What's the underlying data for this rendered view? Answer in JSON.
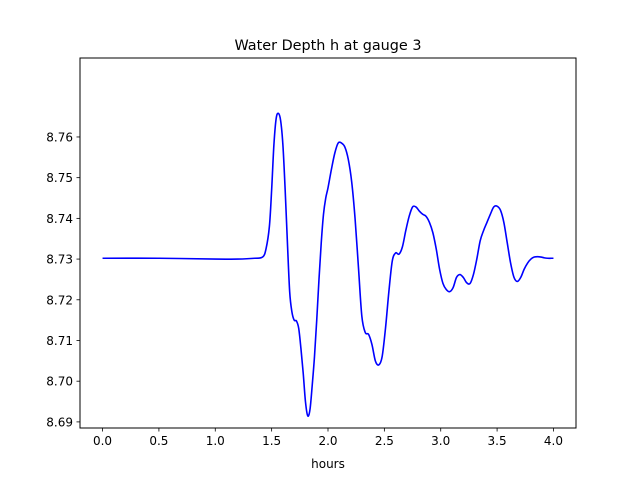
{
  "chart_data": {
    "type": "line",
    "title": "Water Depth h at gauge 3",
    "xlabel": "hours",
    "ylabel": "",
    "xlim": [
      -0.2,
      4.2
    ],
    "ylim": [
      8.6885,
      8.7794
    ],
    "xticks": [
      0.0,
      0.5,
      1.0,
      1.5,
      2.0,
      2.5,
      3.0,
      3.5,
      4.0
    ],
    "xtick_labels": [
      "0.0",
      "0.5",
      "1.0",
      "1.5",
      "2.0",
      "2.5",
      "3.0",
      "3.5",
      "4.0"
    ],
    "yticks": [
      8.69,
      8.7,
      8.71,
      8.72,
      8.73,
      8.74,
      8.75,
      8.76
    ],
    "ytick_labels": [
      "8.69",
      "8.70",
      "8.71",
      "8.72",
      "8.73",
      "8.74",
      "8.75",
      "8.76"
    ],
    "grid": false,
    "series": [
      {
        "color": "#0000ff",
        "x": [
          0.0,
          0.5,
          1.0,
          1.2,
          1.35,
          1.42,
          1.45,
          1.48,
          1.5,
          1.52,
          1.54,
          1.56,
          1.58,
          1.6,
          1.62,
          1.64,
          1.66,
          1.68,
          1.7,
          1.72,
          1.74,
          1.76,
          1.78,
          1.8,
          1.82,
          1.84,
          1.86,
          1.88,
          1.9,
          1.92,
          1.94,
          1.96,
          1.98,
          2.0,
          2.03,
          2.06,
          2.09,
          2.12,
          2.15,
          2.18,
          2.21,
          2.24,
          2.27,
          2.3,
          2.33,
          2.36,
          2.39,
          2.42,
          2.45,
          2.48,
          2.51,
          2.54,
          2.57,
          2.6,
          2.63,
          2.66,
          2.69,
          2.72,
          2.75,
          2.78,
          2.81,
          2.84,
          2.87,
          2.9,
          2.93,
          2.96,
          2.99,
          3.02,
          3.05,
          3.08,
          3.11,
          3.14,
          3.17,
          3.2,
          3.23,
          3.26,
          3.29,
          3.32,
          3.35,
          3.38,
          3.41,
          3.44,
          3.47,
          3.5,
          3.53,
          3.56,
          3.59,
          3.62,
          3.65,
          3.68,
          3.71,
          3.74,
          3.77,
          3.8,
          3.83,
          3.86,
          3.89,
          3.92,
          3.95,
          3.98,
          4.0
        ],
        "y": [
          8.7302,
          8.7302,
          8.73,
          8.73,
          8.7302,
          8.7305,
          8.7325,
          8.738,
          8.747,
          8.758,
          8.7645,
          8.7658,
          8.764,
          8.758,
          8.747,
          8.734,
          8.722,
          8.717,
          8.715,
          8.7148,
          8.713,
          8.708,
          8.702,
          8.695,
          8.6915,
          8.693,
          8.699,
          8.706,
          8.715,
          8.725,
          8.734,
          8.741,
          8.745,
          8.7475,
          8.752,
          8.756,
          8.7585,
          8.7585,
          8.7575,
          8.7545,
          8.749,
          8.74,
          8.728,
          8.716,
          8.712,
          8.7115,
          8.709,
          8.705,
          8.704,
          8.706,
          8.713,
          8.722,
          8.7295,
          8.7315,
          8.7312,
          8.733,
          8.737,
          8.7405,
          8.7428,
          8.7428,
          8.7418,
          8.741,
          8.7405,
          8.739,
          8.7365,
          8.7325,
          8.7275,
          8.724,
          8.7225,
          8.722,
          8.723,
          8.7255,
          8.7262,
          8.7255,
          8.7242,
          8.724,
          8.7262,
          8.73,
          8.7345,
          8.737,
          8.739,
          8.741,
          8.7428,
          8.743,
          8.742,
          8.739,
          8.734,
          8.729,
          8.7255,
          8.7245,
          8.7255,
          8.7275,
          8.729,
          8.73,
          8.7305,
          8.7306,
          8.7305,
          8.7303,
          8.7302,
          8.7302,
          8.7302
        ]
      }
    ]
  }
}
